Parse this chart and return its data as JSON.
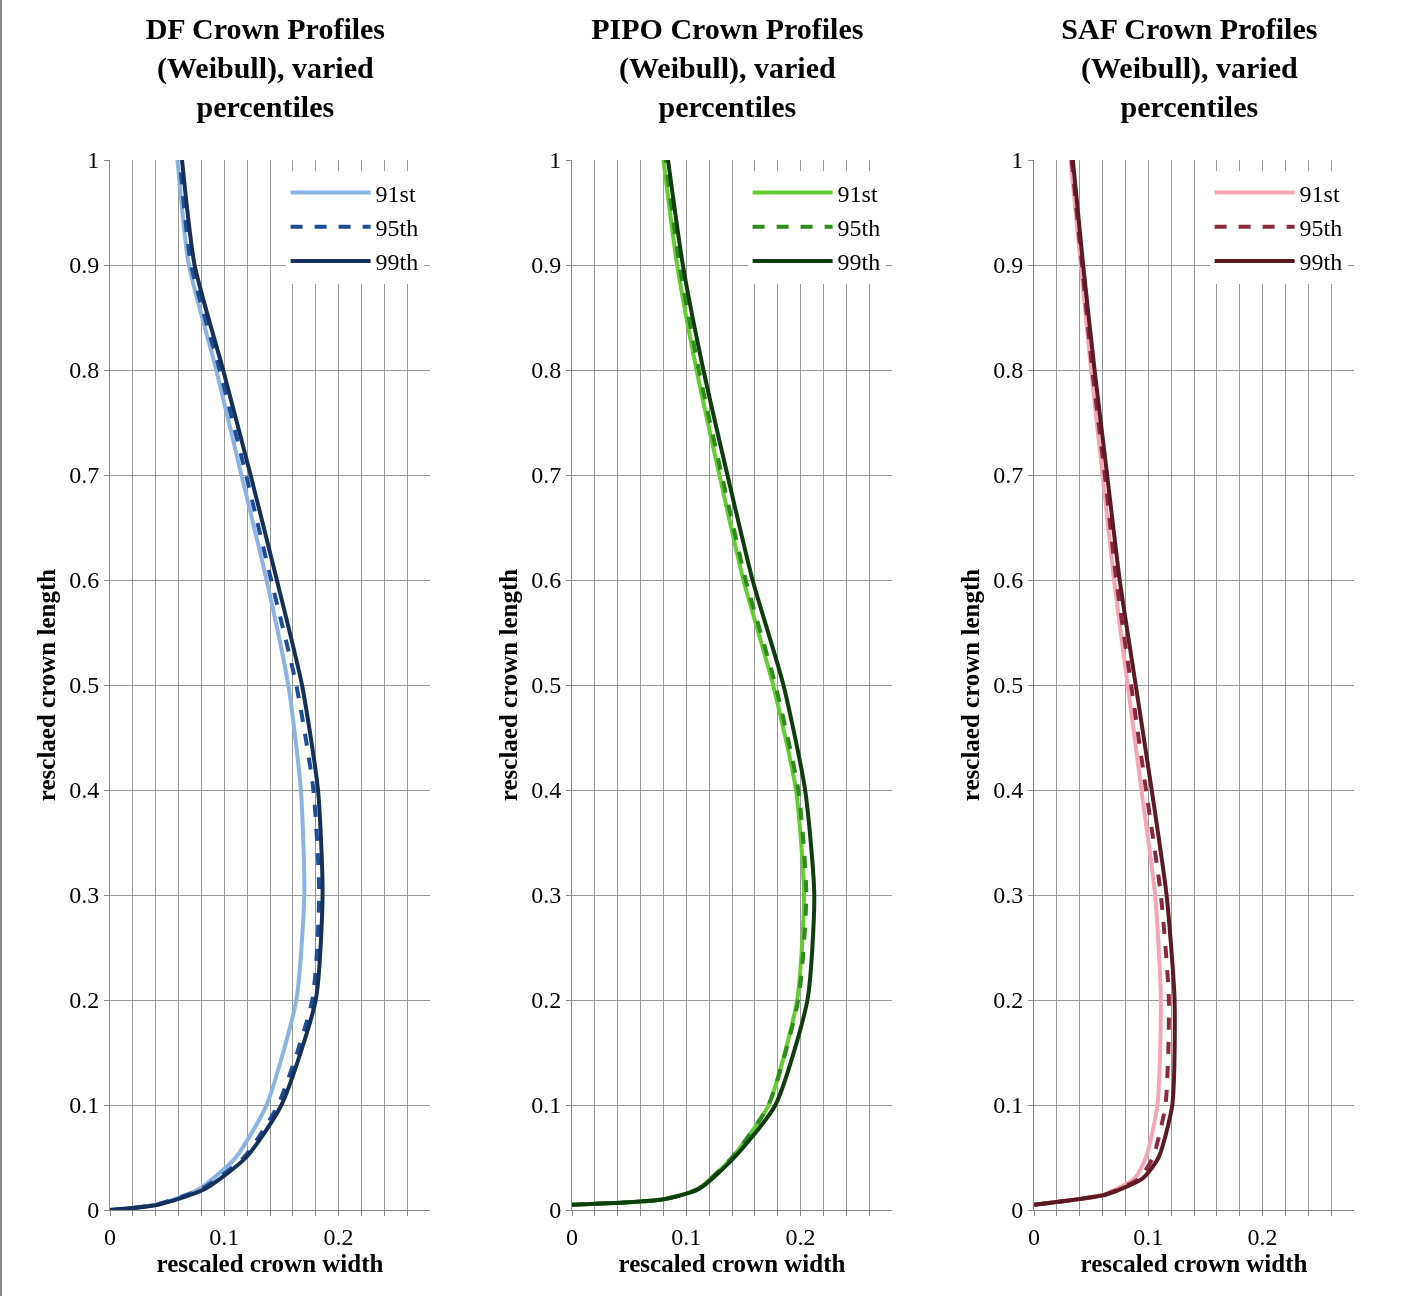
{
  "chart_data": [
    {
      "type": "line",
      "title": "DF Crown Profiles (Weibull), varied percentiles",
      "xlabel": "rescaled crown width",
      "ylabel": "resclaed crown length",
      "xlim": [
        0,
        0.28
      ],
      "ylim": [
        0,
        1
      ],
      "xticks": [
        0,
        {
          "value": 0.02,
          "label": null
        },
        {
          "value": 0.04,
          "label": null
        },
        {
          "value": 0.06,
          "label": null
        },
        {
          "value": 0.08,
          "label": null
        },
        0.1,
        {
          "value": 0.12,
          "label": null
        },
        {
          "value": 0.14,
          "label": null
        },
        {
          "value": 0.16,
          "label": null
        },
        {
          "value": 0.18,
          "label": null
        },
        0.2,
        {
          "value": 0.22,
          "label": null
        },
        {
          "value": 0.24,
          "label": null
        },
        {
          "value": 0.26,
          "label": null
        }
      ],
      "yticks": [
        0,
        0.1,
        0.2,
        0.3,
        0.4,
        0.5,
        0.6,
        0.7,
        0.8,
        0.9,
        1
      ],
      "grid": true,
      "legend": "top right",
      "marker": "none",
      "series": [
        {
          "name": "91st",
          "color": "#8db3e2",
          "line_style": "solid",
          "x": [
            0,
            0.04,
            0.078,
            0.11,
            0.137,
            0.163,
            0.17,
            0.167,
            0.156,
            0.137,
            0.115,
            0.093,
            0.069,
            0.059
          ],
          "values": [
            0,
            0.005,
            0.02,
            0.05,
            0.1,
            0.2,
            0.3,
            0.4,
            0.5,
            0.6,
            0.7,
            0.8,
            0.9,
            1
          ]
        },
        {
          "name": "95th",
          "color": "#1f4e99",
          "line_style": "dashed",
          "x": [
            0,
            0.04,
            0.08,
            0.117,
            0.147,
            0.177,
            0.183,
            0.178,
            0.163,
            0.141,
            0.119,
            0.096,
            0.071,
            0.061
          ],
          "values": [
            0,
            0.005,
            0.02,
            0.05,
            0.1,
            0.2,
            0.3,
            0.4,
            0.5,
            0.6,
            0.7,
            0.8,
            0.9,
            1
          ]
        },
        {
          "name": "99th",
          "color": "#17305a",
          "line_style": "solid",
          "x": [
            0,
            0.042,
            0.083,
            0.119,
            0.15,
            0.18,
            0.186,
            0.182,
            0.168,
            0.146,
            0.123,
            0.099,
            0.074,
            0.063
          ],
          "values": [
            0,
            0.005,
            0.02,
            0.05,
            0.1,
            0.2,
            0.3,
            0.4,
            0.5,
            0.6,
            0.7,
            0.8,
            0.9,
            1
          ]
        }
      ]
    },
    {
      "type": "line",
      "title": "PIPO Crown Profiles (Weibull), varied percentiles",
      "xlabel": "rescaled crown width",
      "ylabel": "resclaed crown length",
      "xlim": [
        0,
        0.28
      ],
      "ylim": [
        0,
        1
      ],
      "xticks": [
        0,
        {
          "value": 0.02,
          "label": null
        },
        {
          "value": 0.04,
          "label": null
        },
        {
          "value": 0.06,
          "label": null
        },
        {
          "value": 0.08,
          "label": null
        },
        0.1,
        {
          "value": 0.12,
          "label": null
        },
        {
          "value": 0.14,
          "label": null
        },
        {
          "value": 0.16,
          "label": null
        },
        {
          "value": 0.18,
          "label": null
        },
        0.2,
        {
          "value": 0.22,
          "label": null
        },
        {
          "value": 0.24,
          "label": null
        },
        {
          "value": 0.26,
          "label": null
        }
      ],
      "yticks": [
        0,
        0.1,
        0.2,
        0.3,
        0.4,
        0.5,
        0.6,
        0.7,
        0.8,
        0.9,
        1
      ],
      "grid": true,
      "legend": "top right",
      "marker": "none",
      "series": [
        {
          "name": "91st",
          "color": "#66cc33",
          "line_style": "solid",
          "x": [
            0,
            0.079,
            0.11,
            0.14,
            0.172,
            0.197,
            0.203,
            0.196,
            0.176,
            0.15,
            0.129,
            0.109,
            0.092,
            0.08
          ],
          "values": [
            0.005,
            0.01,
            0.02,
            0.05,
            0.1,
            0.2,
            0.3,
            0.4,
            0.5,
            0.6,
            0.7,
            0.8,
            0.9,
            1
          ]
        },
        {
          "name": "95th",
          "color": "#2e8b1e",
          "line_style": "dashed",
          "x": [
            0,
            0.079,
            0.11,
            0.14,
            0.172,
            0.198,
            0.205,
            0.198,
            0.178,
            0.152,
            0.131,
            0.111,
            0.094,
            0.082
          ],
          "values": [
            0.005,
            0.01,
            0.02,
            0.05,
            0.1,
            0.2,
            0.3,
            0.4,
            0.5,
            0.6,
            0.7,
            0.8,
            0.9,
            1
          ]
        },
        {
          "name": "99th",
          "color": "#0f3d0f",
          "line_style": "solid",
          "x": [
            0,
            0.079,
            0.111,
            0.142,
            0.178,
            0.206,
            0.212,
            0.204,
            0.185,
            0.158,
            0.136,
            0.115,
            0.097,
            0.084
          ],
          "values": [
            0.005,
            0.01,
            0.02,
            0.05,
            0.1,
            0.2,
            0.3,
            0.4,
            0.5,
            0.6,
            0.7,
            0.8,
            0.9,
            1
          ]
        }
      ]
    },
    {
      "type": "line",
      "title": "SAF Crown Profiles (Weibull), varied percentiles",
      "xlabel": "rescaled crown width",
      "ylabel": "resclaed crown length",
      "xlim": [
        0,
        0.28
      ],
      "ylim": [
        0,
        1
      ],
      "xticks": [
        0,
        {
          "value": 0.02,
          "label": null
        },
        {
          "value": 0.04,
          "label": null
        },
        {
          "value": 0.06,
          "label": null
        },
        {
          "value": 0.08,
          "label": null
        },
        0.1,
        {
          "value": 0.12,
          "label": null
        },
        {
          "value": 0.14,
          "label": null
        },
        {
          "value": 0.16,
          "label": null
        },
        {
          "value": 0.18,
          "label": null
        },
        0.2,
        {
          "value": 0.22,
          "label": null
        },
        {
          "value": 0.24,
          "label": null
        },
        {
          "value": 0.26,
          "label": null
        }
      ],
      "yticks": [
        0,
        0.1,
        0.2,
        0.3,
        0.4,
        0.5,
        0.6,
        0.7,
        0.8,
        0.9,
        1
      ],
      "grid": true,
      "legend": "top right",
      "marker": "none",
      "series": [
        {
          "name": "91st",
          "color": "#f4a6b5",
          "line_style": "solid",
          "x": [
            0,
            0.037,
            0.062,
            0.088,
            0.098,
            0.108,
            0.111,
            0.106,
            0.094,
            0.082,
            0.07,
            0.06,
            0.05,
            0.041,
            0.032
          ],
          "values": [
            0.005,
            0.01,
            0.015,
            0.03,
            0.05,
            0.1,
            0.2,
            0.3,
            0.4,
            0.5,
            0.6,
            0.7,
            0.8,
            0.9,
            1
          ]
        },
        {
          "name": "95th",
          "color": "#8b2a3e",
          "line_style": "dashed",
          "x": [
            0,
            0.037,
            0.063,
            0.092,
            0.104,
            0.115,
            0.118,
            0.111,
            0.098,
            0.085,
            0.072,
            0.062,
            0.051,
            0.042,
            0.033
          ],
          "values": [
            0.005,
            0.01,
            0.015,
            0.03,
            0.05,
            0.1,
            0.2,
            0.3,
            0.4,
            0.5,
            0.6,
            0.7,
            0.8,
            0.9,
            1
          ]
        },
        {
          "name": "99th",
          "color": "#5c1a24",
          "line_style": "solid",
          "x": [
            0,
            0.037,
            0.064,
            0.095,
            0.109,
            0.121,
            0.123,
            0.116,
            0.103,
            0.089,
            0.075,
            0.064,
            0.053,
            0.043,
            0.034
          ],
          "values": [
            0.005,
            0.01,
            0.015,
            0.03,
            0.05,
            0.1,
            0.2,
            0.3,
            0.4,
            0.5,
            0.6,
            0.7,
            0.8,
            0.9,
            1
          ]
        }
      ]
    }
  ]
}
